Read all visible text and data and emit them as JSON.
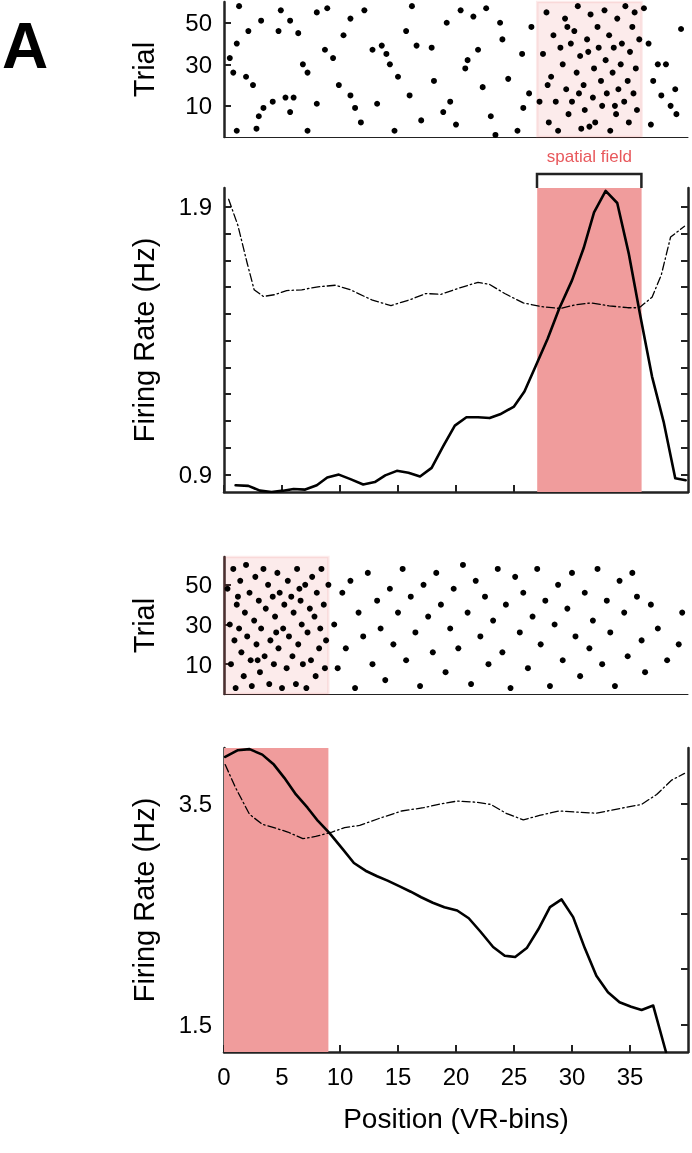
{
  "chart_data": [
    {
      "type": "scatter",
      "ylabel": "Trial",
      "annotations": [
        "A"
      ],
      "marker": "circle",
      "tick_labels": "y",
      "xlim": [
        0,
        40
      ],
      "ylim": [
        -5,
        60
      ],
      "yticks": [
        10,
        30,
        50
      ],
      "bands": [
        {
          "axis": "x",
          "from": 27,
          "to": 36,
          "label": "spatial field",
          "color": "#e8585c"
        }
      ],
      "series": [
        {
          "color": "#000000",
          "x": [
            1.3,
            1.1,
            0.8,
            1.9,
            2.5,
            1.1,
            3,
            3.4,
            3.2,
            2.1,
            4.9,
            5.7,
            4.7,
            6.4,
            5.3,
            6,
            5.7,
            7.2,
            8,
            8.9,
            8.7,
            9.4,
            7.2,
            8,
            10.9,
            12.1,
            10.9,
            11.3,
            12.8,
            13.6,
            14,
            14.3,
            13.2,
            14.7,
            15.7,
            16.6,
            16,
            17,
            17.9,
            18.1,
            18.9,
            19.2,
            20.4,
            20.8,
            20,
            21.5,
            21.9,
            22.3,
            23,
            23.4,
            22.6,
            23.8,
            24.5,
            25.3,
            25.7,
            25.8,
            0.5,
            2.8,
            4.2,
            6.8,
            9.9,
            10.3,
            11.8,
            15,
            16.2,
            19.5,
            21,
            24,
            26.3,
            26.5,
            36.2,
            36.6,
            37.4,
            37.7,
            38.5,
            38.9,
            36.8,
            39.4,
            38.1,
            37,
            39,
            27.2,
            27.5,
            27.8,
            28,
            28.2,
            28.4,
            28.6,
            28.8,
            29,
            29.2,
            29.4,
            29.5,
            29.7,
            29.9,
            30,
            30.2,
            30.4,
            30.5,
            30.7,
            30.8,
            31,
            31.1,
            31.3,
            31.4,
            31.6,
            31.8,
            31.9,
            32,
            32.2,
            32.3,
            32.5,
            32.6,
            32.8,
            32.9,
            33,
            33.2,
            33.3,
            33.5,
            33.6,
            33.8,
            33.9,
            34,
            34.2,
            34.3,
            34.5,
            34.6,
            34.8,
            34.9,
            35,
            35.2,
            35.3,
            35.5,
            35.6,
            35.8,
            27.9,
            29.6,
            31.5,
            33.7,
            35.4,
            30.6
          ],
          "values": [
            58,
            40,
            26,
            24,
            20,
            -2,
            5,
            9,
            51,
            46,
            56,
            51,
            46,
            45,
            14,
            14,
            7,
            -2,
            55,
            57,
            37,
            33,
            26,
            11,
            52,
            56,
            15,
            9,
            37,
            39,
            35,
            30,
            11,
            -2,
            46,
            39,
            15,
            3,
            38,
            22,
            7,
            50,
            56,
            28,
            1,
            53,
            37,
            19,
            5,
            -4,
            57,
            50,
            23,
            -2,
            35,
            9,
            33,
            -1,
            12,
            30,
            20,
            44,
            2,
            24,
            58,
            12,
            32,
            42,
            16,
            48,
            57,
            40,
            30,
            15,
            10,
            18,
            1,
            47,
            30,
            22,
            6,
            12,
            35,
            55,
            2,
            24,
            44,
            12,
            -2,
            38,
            30,
            52,
            18,
            6,
            40,
            12,
            46,
            26,
            58,
            34,
            -1,
            20,
            8,
            42,
            36,
            54,
            14,
            28,
            2,
            48,
            38,
            22,
            10,
            56,
            32,
            16,
            44,
            -2,
            26,
            38,
            6,
            52,
            18,
            30,
            40,
            12,
            58,
            22,
            2,
            36,
            48,
            16,
            28,
            8,
            42,
            20,
            48,
            0,
            10,
            55,
            16
          ]
        }
      ]
    },
    {
      "type": "line",
      "ylabel": "Firing Rate (Hz)",
      "tick_labels": "y",
      "xlim": [
        0,
        40
      ],
      "xticks": [
        0,
        5,
        10,
        15,
        20,
        25,
        30,
        35
      ],
      "ylim": [
        0.835,
        1.97
      ],
      "yticks": [
        0.9,
        {
          "value": 1.0,
          "label": null
        },
        {
          "value": 1.1,
          "label": null
        },
        {
          "value": 1.2,
          "label": null
        },
        {
          "value": 1.3,
          "label": null
        },
        {
          "value": 1.4,
          "label": null
        },
        {
          "value": 1.5,
          "label": null
        },
        {
          "value": 1.6,
          "label": null
        },
        {
          "value": 1.7,
          "label": null
        },
        {
          "value": 1.8,
          "label": null
        },
        1.9
      ],
      "bands": [
        {
          "axis": "x",
          "from": 27,
          "to": 36,
          "color": "#f09c9c"
        }
      ],
      "series": [
        {
          "color": "#000000",
          "line_style": "solid",
          "x": [
            1,
            2.1,
            3.1,
            4.1,
            5.1,
            6,
            7,
            8,
            8.9,
            9.9,
            10.9,
            12,
            13,
            13.9,
            14.9,
            15.9,
            16.9,
            17.9,
            18.9,
            19.9,
            20.9,
            21.9,
            22.9,
            23.8,
            25,
            25.9,
            26.9,
            27.9,
            28.9,
            30,
            31,
            31.9,
            32.9,
            33.9,
            34.9,
            35.9,
            36.9,
            37.9,
            38.9,
            39.8
          ],
          "values": [
            0.86,
            0.858,
            0.84,
            0.835,
            0.84,
            0.846,
            0.844,
            0.86,
            0.889,
            0.9,
            0.883,
            0.863,
            0.872,
            0.897,
            0.914,
            0.907,
            0.893,
            0.925,
            1.006,
            1.083,
            1.114,
            1.114,
            1.111,
            1.125,
            1.154,
            1.21,
            1.308,
            1.407,
            1.52,
            1.625,
            1.745,
            1.879,
            1.959,
            1.914,
            1.724,
            1.49,
            1.266,
            1.097,
            0.886,
            0.879
          ]
        },
        {
          "color": "#000000",
          "line_style": "dashed",
          "x": [
            0.4,
            1.2,
            2,
            2.6,
            3.4,
            4.4,
            5.4,
            6.7,
            8.1,
            9.6,
            10.9,
            12.8,
            14.4,
            16.1,
            17.4,
            18.7,
            20.3,
            21.9,
            22.9,
            24.2,
            25.8,
            27.4,
            29,
            30.3,
            31.6,
            33.2,
            34.8,
            35.8,
            36.9,
            37.7,
            38.5,
            39.7
          ],
          "values": [
            1.928,
            1.83,
            1.689,
            1.59,
            1.565,
            1.572,
            1.587,
            1.59,
            1.601,
            1.607,
            1.59,
            1.551,
            1.531,
            1.554,
            1.576,
            1.573,
            1.597,
            1.618,
            1.61,
            1.576,
            1.541,
            1.527,
            1.52,
            1.534,
            1.541,
            1.53,
            1.523,
            1.523,
            1.562,
            1.646,
            1.787,
            1.827
          ]
        }
      ]
    },
    {
      "type": "scatter",
      "ylabel": "Trial",
      "marker": "circle",
      "tick_labels": "y",
      "xlim": [
        0,
        40
      ],
      "ylim": [
        -5,
        64
      ],
      "yticks": [
        10,
        30,
        50
      ],
      "bands": [
        {
          "axis": "x",
          "from": 0,
          "to": 9,
          "color": "#e8585c"
        }
      ],
      "series": [
        {
          "color": "#000000",
          "x": [
            0.3,
            0.5,
            0.6,
            0.8,
            0.9,
            1,
            1.1,
            1.3,
            1.4,
            1.5,
            1.7,
            1.8,
            1.9,
            2,
            2.2,
            2.3,
            2.4,
            2.6,
            2.7,
            2.8,
            3,
            3.1,
            3.2,
            3.4,
            3.5,
            3.6,
            3.8,
            3.9,
            4,
            4.2,
            4.3,
            4.4,
            4.6,
            4.7,
            4.8,
            5,
            5.1,
            5.2,
            5.4,
            5.5,
            5.6,
            5.8,
            5.9,
            6,
            6.2,
            6.3,
            6.4,
            6.6,
            6.7,
            6.8,
            7,
            7.1,
            7.2,
            7.4,
            7.5,
            7.6,
            7.8,
            7.9,
            8,
            8.2,
            8.3,
            8.4,
            8.6,
            8.7,
            8.8,
            9,
            1.2,
            2.9,
            4.5,
            6.5,
            9.5,
            9.8,
            10.2,
            10.5,
            10.9,
            11.3,
            11.6,
            12,
            12.4,
            12.8,
            13.2,
            13.5,
            13.9,
            14.3,
            14.6,
            15,
            15.4,
            15.7,
            16.1,
            16.5,
            16.9,
            17.2,
            17.6,
            18,
            18.3,
            18.7,
            19.1,
            19.5,
            19.8,
            20.2,
            20.6,
            21,
            21.3,
            21.7,
            22.1,
            22.5,
            22.8,
            23.2,
            23.6,
            24,
            24.3,
            24.7,
            25.1,
            25.5,
            25.8,
            26.2,
            26.6,
            27,
            27.3,
            27.7,
            28.1,
            28.5,
            28.8,
            29.2,
            29.6,
            30,
            30.3,
            30.7,
            31.1,
            31.5,
            31.8,
            32.2,
            32.6,
            33,
            33.3,
            33.7,
            34.1,
            34.5,
            34.8,
            35.2,
            35.6,
            36,
            36.3,
            36.8,
            37.4,
            38.2,
            39.2,
            39.5
          ],
          "values": [
            48,
            30,
            10,
            58,
            22,
            -2,
            40,
            28,
            52,
            16,
            4,
            36,
            60,
            24,
            46,
            12,
            -1,
            32,
            54,
            20,
            42,
            6,
            28,
            58,
            14,
            38,
            50,
            0,
            22,
            44,
            10,
            34,
            56,
            18,
            46,
            -2,
            28,
            40,
            8,
            52,
            24,
            44,
            14,
            36,
            0,
            58,
            20,
            42,
            30,
            10,
            50,
            -2,
            26,
            38,
            12,
            54,
            34,
            4,
            46,
            18,
            28,
            58,
            40,
            8,
            22,
            50,
            44,
            12,
            26,
            48,
            30,
            8,
            46,
            18,
            52,
            -2,
            36,
            24,
            56,
            10,
            42,
            28,
            2,
            48,
            20,
            36,
            58,
            12,
            44,
            26,
            -1,
            50,
            34,
            16,
            56,
            40,
            6,
            28,
            48,
            18,
            60,
            36,
            0,
            52,
            24,
            44,
            10,
            32,
            58,
            16,
            40,
            -2,
            54,
            26,
            46,
            8,
            34,
            58,
            20,
            42,
            -1,
            30,
            50,
            12,
            38,
            56,
            24,
            4,
            46,
            18,
            32,
            58,
            10,
            42,
            26,
            -1,
            52,
            36,
            14,
            56,
            44,
            22,
            6,
            40,
            28,
            12,
            20,
            36
          ]
        }
      ]
    },
    {
      "type": "line",
      "ylabel": "Firing Rate (Hz)",
      "xlabel": "Position (VR-bins)",
      "xlim": [
        0,
        40
      ],
      "xticks": [
        0,
        5,
        10,
        15,
        20,
        25,
        30,
        35
      ],
      "ylim": [
        1.25,
        4
      ],
      "yticks": [
        1.5,
        {
          "value": 2,
          "label": null
        },
        {
          "value": 2.5,
          "label": null
        },
        {
          "value": 3,
          "label": null
        },
        3.5
      ],
      "bands": [
        {
          "axis": "x",
          "from": 0,
          "to": 9,
          "color": "#f09c9c"
        }
      ],
      "series": [
        {
          "color": "#000000",
          "line_style": "solid",
          "x": [
            0.1,
            1.2,
            2.2,
            3.3,
            4.3,
            5.2,
            6.2,
            7.2,
            8.1,
            9.1,
            10.2,
            11.2,
            12.2,
            13.2,
            14.1,
            15.1,
            16.1,
            17,
            18,
            19,
            20.1,
            21.1,
            22.1,
            23.2,
            24.2,
            25.1,
            26.1,
            27.1,
            28.1,
            29.1,
            30.1,
            31.1,
            32.1,
            33.1,
            34.1,
            35.1,
            36,
            37,
            38.1
          ],
          "values": [
            3.92,
            3.98,
            3.99,
            3.94,
            3.85,
            3.73,
            3.58,
            3.46,
            3.34,
            3.23,
            3.09,
            2.96,
            2.89,
            2.84,
            2.8,
            2.75,
            2.7,
            2.65,
            2.6,
            2.56,
            2.53,
            2.46,
            2.34,
            2.2,
            2.12,
            2.11,
            2.19,
            2.36,
            2.56,
            2.63,
            2.47,
            2.19,
            1.94,
            1.79,
            1.7,
            1.66,
            1.63,
            1.67,
            1.25
          ]
        },
        {
          "color": "#000000",
          "line_style": "dashed",
          "x": [
            0.1,
            1,
            2.2,
            3.3,
            4.6,
            5.5,
            6.8,
            7.9,
            9.3,
            10.4,
            11.7,
            13.3,
            15.3,
            17.2,
            18.5,
            20.1,
            21.7,
            23,
            24.3,
            25.8,
            27.2,
            28.9,
            30.5,
            32.1,
            34,
            36,
            37.3,
            38.6,
            39.7
          ],
          "values": [
            3.85,
            3.64,
            3.4,
            3.31,
            3.27,
            3.24,
            3.18,
            3.2,
            3.24,
            3.28,
            3.3,
            3.36,
            3.43,
            3.46,
            3.49,
            3.52,
            3.51,
            3.49,
            3.41,
            3.35,
            3.39,
            3.43,
            3.42,
            3.41,
            3.45,
            3.49,
            3.58,
            3.71,
            3.77
          ]
        }
      ]
    }
  ]
}
